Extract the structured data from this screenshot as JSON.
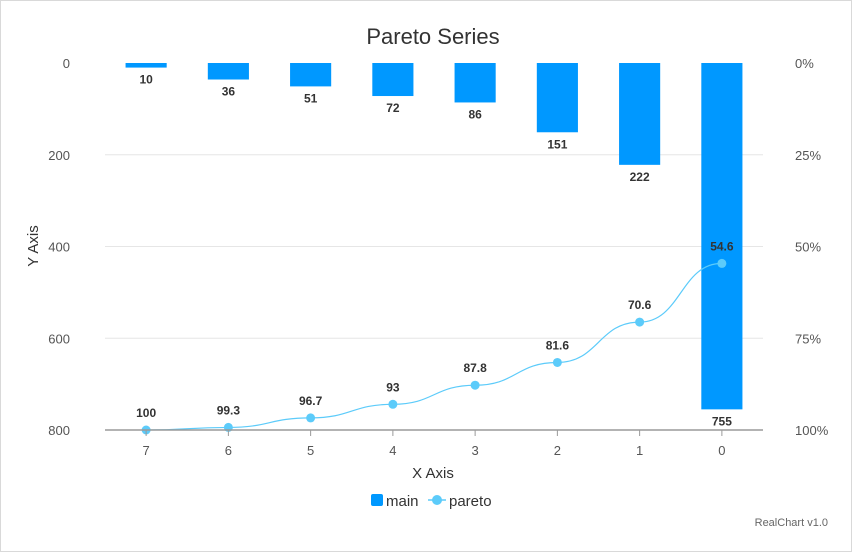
{
  "chart_data": {
    "type": "bar",
    "title": "Pareto Series",
    "xlabel": "X Axis",
    "ylabel": "Y Axis",
    "categories": [
      "7",
      "6",
      "5",
      "4",
      "3",
      "2",
      "1",
      "0"
    ],
    "y_axis_reversed": true,
    "ylim": [
      0,
      800
    ],
    "yticks": [
      "0",
      "200",
      "400",
      "600",
      "800"
    ],
    "y2lim": [
      0,
      100
    ],
    "y2ticks": [
      "0%",
      "25%",
      "50%",
      "75%",
      "100%"
    ],
    "grid": true,
    "legend_position": "bottom",
    "series": [
      {
        "name": "main",
        "type": "bar",
        "color": "#0098ff",
        "values": [
          10,
          36,
          51,
          72,
          86,
          151,
          222,
          755
        ],
        "labels": [
          "10",
          "36",
          "51",
          "72",
          "86",
          "151",
          "222",
          "755"
        ]
      },
      {
        "name": "pareto",
        "type": "line",
        "axis": "secondary",
        "color": "#5ccbfa",
        "values": [
          100,
          99.3,
          96.7,
          93,
          87.8,
          81.6,
          70.6,
          54.6
        ],
        "labels": [
          "100",
          "99.3",
          "96.7",
          "93",
          "87.8",
          "81.6",
          "70.6",
          "54.6"
        ]
      }
    ]
  },
  "credit": "RealChart v1.0"
}
